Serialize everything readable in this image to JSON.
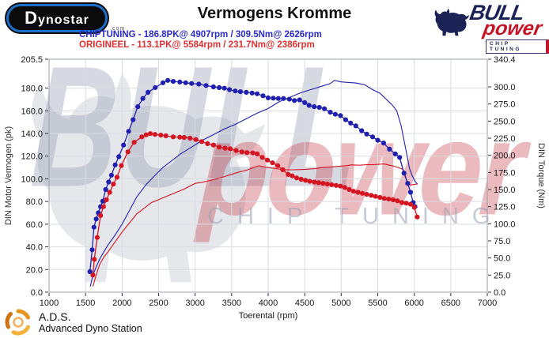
{
  "header": {
    "title": "Vermogens Kromme",
    "legend": [
      {
        "label": "CHIPTUNING  - 186.8PK@ 4907rpm / 309.5Nm@ 2626rpm",
        "color": "#2a2ac8"
      },
      {
        "label": "ORIGINEEL  - 113.1PK@ 5584rpm / 231.7Nm@ 2386rpm",
        "color": "#e03030"
      }
    ]
  },
  "logos": {
    "dynostar": {
      "main": "Dynostar",
      "suffix": ".com"
    },
    "bullpower": {
      "bull": "BULL",
      "power": "power",
      "chip": "CHIP TUNING"
    },
    "ads": {
      "abbr": "A.D.S.",
      "name": "Advanced Dyno Station"
    }
  },
  "watermark": {
    "bull": "BULL",
    "power": "power",
    "chip": "CHIP TUNING"
  },
  "chart_data": {
    "type": "line",
    "title": "Vermogens Kromme",
    "x_axis": {
      "label": "Toerental (rpm)",
      "min": 1000,
      "max": 7000,
      "tick_step": 500,
      "gridlines": true
    },
    "y_left": {
      "label": "DIN Motor Vermogen (pk)",
      "min": 0,
      "max": 205.5,
      "ticks": [
        0,
        20,
        40,
        60,
        80,
        100,
        120,
        140,
        160,
        180,
        205.5
      ]
    },
    "y_right": {
      "label": "DIN Torque (Nm)",
      "min": 0,
      "max": 340.4,
      "ticks": [
        0,
        25,
        50,
        75,
        100,
        125,
        150,
        175,
        200,
        225,
        250,
        275,
        300,
        340.4
      ]
    },
    "grid_color": "#d9dce1",
    "series": [
      {
        "name": "chiptuning-torque-nm",
        "color": "#2020b0",
        "axis": "torque",
        "marker": true,
        "peak_label": "309.5Nm@ 2626rpm",
        "points": [
          [
            1560,
            30
          ],
          [
            1590,
            62
          ],
          [
            1615,
            95
          ],
          [
            1645,
            107
          ],
          [
            1675,
            116
          ],
          [
            1705,
            125
          ],
          [
            1735,
            133
          ],
          [
            1775,
            150
          ],
          [
            1815,
            161
          ],
          [
            1855,
            171
          ],
          [
            1905,
            186
          ],
          [
            1955,
            198
          ],
          [
            2020,
            215
          ],
          [
            2090,
            235
          ],
          [
            2150,
            252
          ],
          [
            2215,
            271
          ],
          [
            2285,
            283
          ],
          [
            2355,
            292
          ],
          [
            2455,
            299
          ],
          [
            2560,
            306
          ],
          [
            2626,
            309.5
          ],
          [
            2700,
            308
          ],
          [
            2790,
            307
          ],
          [
            2870,
            306
          ],
          [
            2950,
            305
          ],
          [
            3050,
            304
          ],
          [
            3150,
            302
          ],
          [
            3250,
            300
          ],
          [
            3330,
            299
          ],
          [
            3400,
            298
          ],
          [
            3470,
            296
          ],
          [
            3550,
            294
          ],
          [
            3620,
            293
          ],
          [
            3700,
            292
          ],
          [
            3780,
            291
          ],
          [
            3850,
            290
          ],
          [
            3930,
            287
          ],
          [
            4000,
            284
          ],
          [
            4070,
            283.5
          ],
          [
            4140,
            283
          ],
          [
            4210,
            283
          ],
          [
            4290,
            282
          ],
          [
            4360,
            280
          ],
          [
            4430,
            281
          ],
          [
            4500,
            277
          ],
          [
            4560,
            273
          ],
          [
            4630,
            271
          ],
          [
            4700,
            270
          ],
          [
            4770,
            268
          ],
          [
            4850,
            263
          ],
          [
            4920,
            260
          ],
          [
            4990,
            258
          ],
          [
            5060,
            252
          ],
          [
            5130,
            247
          ],
          [
            5200,
            243
          ],
          [
            5280,
            236
          ],
          [
            5350,
            231
          ],
          [
            5430,
            227
          ],
          [
            5500,
            222
          ],
          [
            5580,
            218
          ],
          [
            5660,
            209
          ],
          [
            5740,
            202
          ],
          [
            5800,
            197
          ],
          [
            5860,
            174
          ],
          [
            5910,
            159
          ],
          [
            5950,
            146
          ],
          [
            5985,
            131
          ],
          [
            6010,
            125
          ]
        ]
      },
      {
        "name": "origineel-torque-nm",
        "color": "#d41420",
        "axis": "torque",
        "marker": true,
        "peak_label": "231.7Nm@ 2386rpm",
        "points": [
          [
            1600,
            25
          ],
          [
            1620,
            48
          ],
          [
            1660,
            80
          ],
          [
            1705,
            112
          ],
          [
            1745,
            125
          ],
          [
            1785,
            135
          ],
          [
            1830,
            146
          ],
          [
            1880,
            158
          ],
          [
            1930,
            168
          ],
          [
            1990,
            185
          ],
          [
            2080,
            205
          ],
          [
            2165,
            219
          ],
          [
            2270,
            227
          ],
          [
            2330,
            230
          ],
          [
            2386,
            231.7
          ],
          [
            2450,
            230.5
          ],
          [
            2530,
            229.5
          ],
          [
            2600,
            228.5
          ],
          [
            2700,
            227
          ],
          [
            2790,
            226.5
          ],
          [
            2850,
            226
          ],
          [
            2930,
            225
          ],
          [
            3010,
            223
          ],
          [
            3090,
            220
          ],
          [
            3170,
            217
          ],
          [
            3250,
            215
          ],
          [
            3330,
            212
          ],
          [
            3410,
            210.5
          ],
          [
            3480,
            209.5
          ],
          [
            3560,
            207
          ],
          [
            3640,
            205
          ],
          [
            3710,
            204
          ],
          [
            3790,
            203.5
          ],
          [
            3850,
            202
          ],
          [
            3920,
            197
          ],
          [
            3990,
            193
          ],
          [
            4060,
            189
          ],
          [
            4130,
            185
          ],
          [
            4200,
            179
          ],
          [
            4275,
            172
          ],
          [
            4330,
            170
          ],
          [
            4390,
            167
          ],
          [
            4450,
            165
          ],
          [
            4510,
            163.5
          ],
          [
            4570,
            162
          ],
          [
            4630,
            161
          ],
          [
            4690,
            160
          ],
          [
            4750,
            159
          ],
          [
            4810,
            158
          ],
          [
            4870,
            157
          ],
          [
            4930,
            156
          ],
          [
            4990,
            155
          ],
          [
            5050,
            153
          ],
          [
            5110,
            150
          ],
          [
            5170,
            147.5
          ],
          [
            5230,
            146
          ],
          [
            5290,
            144.5
          ],
          [
            5350,
            143
          ],
          [
            5410,
            141.5
          ],
          [
            5470,
            140
          ],
          [
            5530,
            138.5
          ],
          [
            5590,
            137
          ],
          [
            5650,
            136
          ],
          [
            5710,
            135
          ],
          [
            5770,
            133.5
          ],
          [
            5830,
            131
          ],
          [
            5890,
            130
          ],
          [
            5950,
            128.5
          ],
          [
            6000,
            124
          ],
          [
            6040,
            110
          ]
        ]
      },
      {
        "name": "chiptuning-power-pk",
        "color": "#2020b0",
        "axis": "power",
        "marker": false,
        "peak_label": "186.8PK@ 4907rpm",
        "points": [
          [
            1565,
            5
          ],
          [
            1600,
            15
          ],
          [
            1650,
            23
          ],
          [
            1700,
            30
          ],
          [
            1800,
            41
          ],
          [
            1900,
            50
          ],
          [
            2000,
            60
          ],
          [
            2100,
            72
          ],
          [
            2200,
            84
          ],
          [
            2330,
            95
          ],
          [
            2450,
            103
          ],
          [
            2560,
            110
          ],
          [
            2680,
            116
          ],
          [
            2800,
            122
          ],
          [
            2950,
            128
          ],
          [
            3100,
            134
          ],
          [
            3250,
            139
          ],
          [
            3400,
            144
          ],
          [
            3550,
            148
          ],
          [
            3700,
            153
          ],
          [
            3850,
            158
          ],
          [
            4000,
            162
          ],
          [
            4150,
            168
          ],
          [
            4300,
            172
          ],
          [
            4450,
            176
          ],
          [
            4600,
            179
          ],
          [
            4750,
            182
          ],
          [
            4850,
            184
          ],
          [
            4907,
            186.8
          ],
          [
            5000,
            185.5
          ],
          [
            5100,
            185
          ],
          [
            5200,
            184.5
          ],
          [
            5320,
            183
          ],
          [
            5420,
            179
          ],
          [
            5530,
            175.5
          ],
          [
            5620,
            170
          ],
          [
            5700,
            165
          ],
          [
            5760,
            160
          ],
          [
            5820,
            147
          ],
          [
            5860,
            134
          ],
          [
            5900,
            121
          ],
          [
            5935,
            109
          ],
          [
            5970,
            103
          ],
          [
            6010,
            98
          ],
          [
            6045,
            95
          ]
        ]
      },
      {
        "name": "origineel-power-pk",
        "color": "#d41420",
        "axis": "power",
        "marker": false,
        "peak_label": "113.1PK@ 5584rpm",
        "points": [
          [
            1600,
            5
          ],
          [
            1640,
            14
          ],
          [
            1690,
            24
          ],
          [
            1750,
            31
          ],
          [
            1800,
            35
          ],
          [
            1900,
            44
          ],
          [
            2000,
            53
          ],
          [
            2100,
            61
          ],
          [
            2200,
            69
          ],
          [
            2300,
            74
          ],
          [
            2400,
            79
          ],
          [
            2550,
            83
          ],
          [
            2700,
            87
          ],
          [
            2850,
            91
          ],
          [
            3000,
            96
          ],
          [
            3100,
            97
          ],
          [
            3200,
            98.5
          ],
          [
            3300,
            100
          ],
          [
            3400,
            102
          ],
          [
            3500,
            104
          ],
          [
            3600,
            106
          ],
          [
            3700,
            107.5
          ],
          [
            3800,
            110
          ],
          [
            3870,
            111.5
          ],
          [
            3950,
            110.5
          ],
          [
            4050,
            109.5
          ],
          [
            4150,
            108.7
          ],
          [
            4250,
            108
          ],
          [
            4350,
            108
          ],
          [
            4450,
            108.2
          ],
          [
            4550,
            108.5
          ],
          [
            4650,
            109
          ],
          [
            4750,
            110
          ],
          [
            4850,
            110.5
          ],
          [
            4950,
            111
          ],
          [
            5050,
            111.5
          ],
          [
            5150,
            112.3
          ],
          [
            5250,
            112
          ],
          [
            5350,
            112.4
          ],
          [
            5450,
            112.6
          ],
          [
            5584,
            113.1
          ],
          [
            5700,
            111.5
          ],
          [
            5780,
            110
          ],
          [
            5840,
            108.5
          ],
          [
            5870,
            105
          ],
          [
            5900,
            97
          ],
          [
            5950,
            94.5
          ],
          [
            6040,
            95.5
          ]
        ]
      }
    ]
  }
}
